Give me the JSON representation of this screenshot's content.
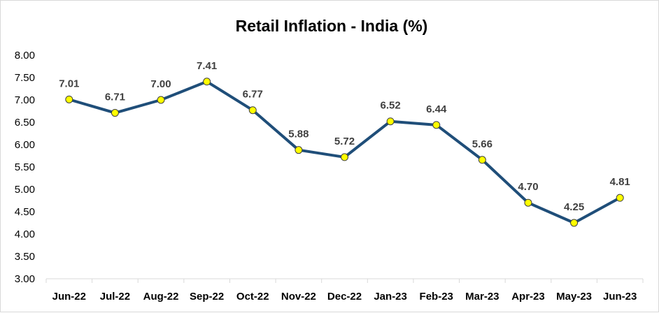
{
  "chart_data": {
    "type": "line",
    "title": "Retail Inflation -  India (%)",
    "categories": [
      "Jun-22",
      "Jul-22",
      "Aug-22",
      "Sep-22",
      "Oct-22",
      "Nov-22",
      "Dec-22",
      "Jan-23",
      "Feb-23",
      "Mar-23",
      "Apr-23",
      "May-23",
      "Jun-23"
    ],
    "series": [
      {
        "values": [
          7.01,
          6.71,
          7.0,
          7.41,
          6.77,
          5.88,
          5.72,
          6.52,
          6.44,
          5.66,
          4.7,
          4.25,
          4.81
        ]
      }
    ],
    "data_labels": [
      "7.01",
      "6.71",
      "7.00",
      "7.41",
      "6.77",
      "5.88",
      "5.72",
      "6.52",
      "6.44",
      "5.66",
      "4.70",
      "4.25",
      "4.81"
    ],
    "ylim": [
      3.0,
      8.0
    ],
    "yticks": [
      "3.00",
      "3.50",
      "4.00",
      "4.50",
      "5.00",
      "5.50",
      "6.00",
      "6.50",
      "7.00",
      "7.50",
      "8.00"
    ],
    "grid": false,
    "legend": "none",
    "colors": {
      "line": "#1f4e79",
      "marker_fill": "#ffff00",
      "marker_edge": "#404040",
      "label": "#404040"
    }
  }
}
